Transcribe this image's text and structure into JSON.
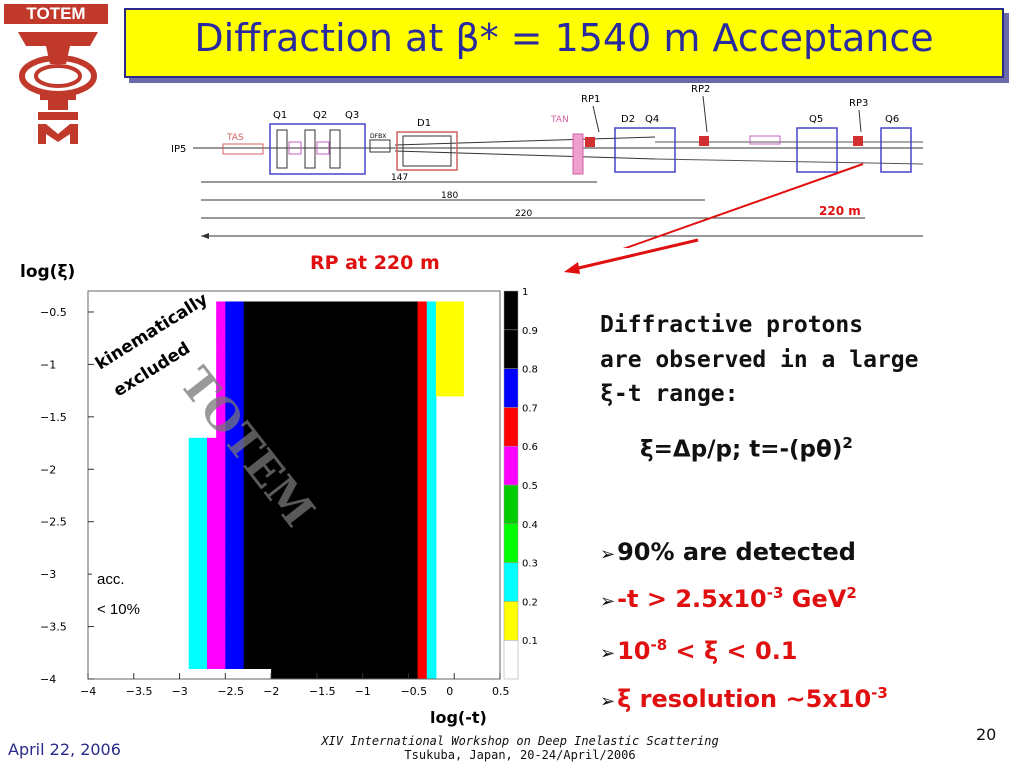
{
  "logo": {
    "text": "TOTEM"
  },
  "title": {
    "prefix": "Diffraction at ",
    "beta": "β",
    "suffix": "* = 1540 m Acceptance"
  },
  "beamline": {
    "ip": "IP5",
    "labels": {
      "tas": "TAS",
      "q1": "Q1",
      "q2": "Q2",
      "q3": "Q3",
      "dfbx": "DFBX",
      "d1": "D1",
      "tan": "TAN",
      "d2": "D2",
      "q4": "Q4",
      "q5": "Q5",
      "q6": "Q6",
      "rp1": "RP1",
      "rp2": "RP2",
      "rp3": "RP3"
    },
    "distances": {
      "d147": "147",
      "d180": "180",
      "d220": "220",
      "d220m": "220 m"
    }
  },
  "rp_label": "RP at 220 m",
  "chart_data": {
    "type": "heatmap",
    "xlabel": "log(-t)",
    "ylabel": "log(ξ)",
    "xlim": [
      -4,
      0.5
    ],
    "ylim": [
      -4,
      -0.3
    ],
    "xticks": [
      "−4",
      "−3.5",
      "−3",
      "−2.5",
      "−2",
      "−1.5",
      "−1",
      "−0.5",
      "0",
      "0.5"
    ],
    "yticks": [
      "−0.5",
      "−1",
      "−1.5",
      "−2",
      "−2.5",
      "−3",
      "−3.5",
      "−4"
    ],
    "colorbar": {
      "range": [
        0,
        1
      ],
      "ticks": [
        "1",
        "0.9",
        "0.8",
        "0.7",
        "0.6",
        "0.5",
        "0.4",
        "0.3",
        "0.2",
        "0.1"
      ]
    },
    "annotations": {
      "excluded_1": "kinematically",
      "excluded_2": "excluded",
      "acc_1": "acc.",
      "acc_2": "< 10%",
      "watermark": "TOTEM"
    }
  },
  "text": {
    "line1": "Diffractive protons",
    "line2": "are observed in a large",
    "xi": "ξ",
    "line3": "-t range:",
    "formula_xi": "ξ",
    "formula_eq": "=",
    "formula_delta": "Δ",
    "formula_rest": "p/p; t=-(p",
    "formula_theta": "θ",
    "formula_close": ")",
    "formula_sup": "2"
  },
  "bullets": {
    "b1": "90% are detected",
    "b2_main": "-t > 2.5x10",
    "b2_exp": "-3",
    "b2_unit": " GeV",
    "b2_unit_exp": "2",
    "b3_a": "10",
    "b3_exp": "-8",
    "b3_rest": " < ξ < 0.1",
    "b4_xi": "ξ",
    "b4_rest": " resolution ~5x10",
    "b4_exp": "-3"
  },
  "footer": {
    "date": "April 22, 2006",
    "workshop": "XIV International Workshop on Deep Inelastic Scattering",
    "location": "Tsukuba, Japan, 20-24/April/2006",
    "page": "20"
  },
  "colors": {
    "title_bg": "#ffff00",
    "title_text": "#2a2aa0",
    "red": "#e01010",
    "logo": "#c0392b"
  }
}
